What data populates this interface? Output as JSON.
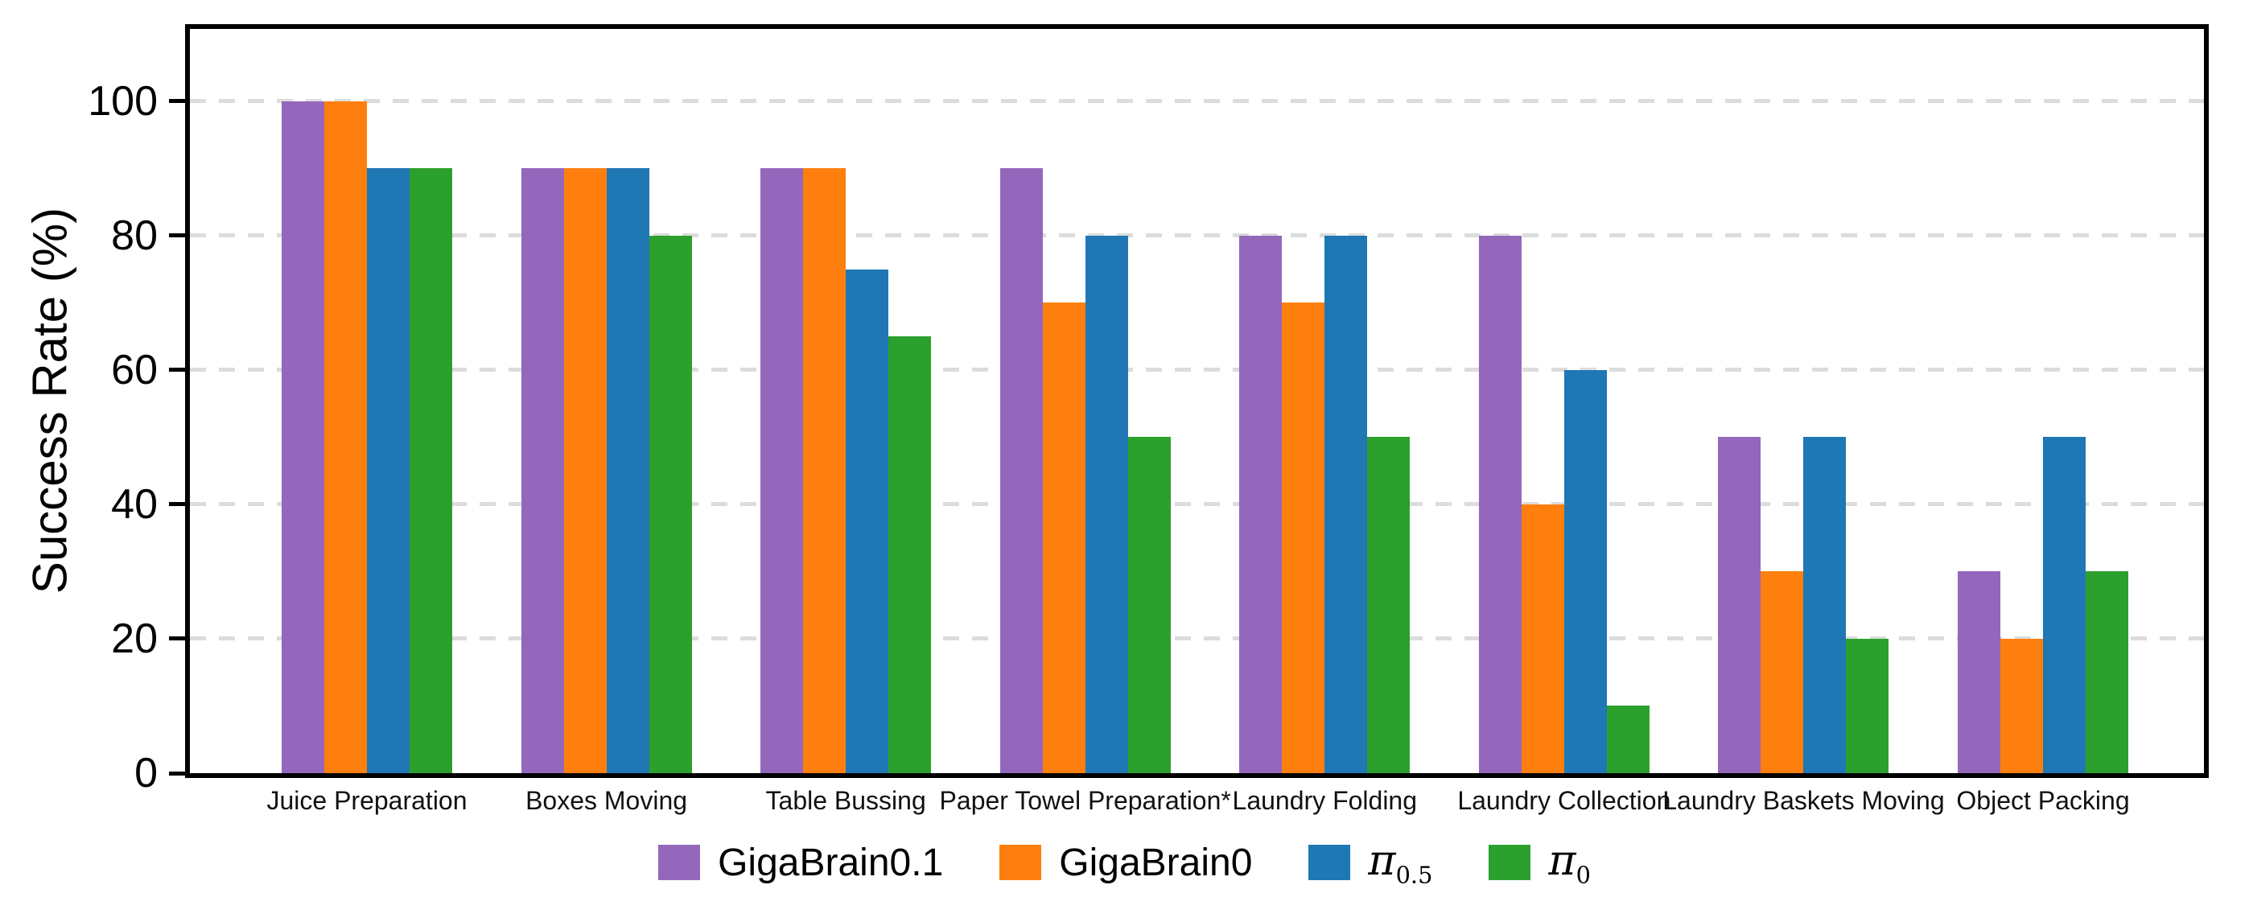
{
  "chart_data": {
    "type": "bar",
    "title": "",
    "xlabel": "",
    "ylabel": "Success Rate (%)",
    "ylim": [
      0,
      110.75
    ],
    "yticks": [
      0,
      20,
      40,
      60,
      80,
      100
    ],
    "grid": {
      "horizontal": true,
      "style": "dashed",
      "color": "#dcdcdc",
      "at": [
        20,
        40,
        60,
        80,
        100
      ]
    },
    "legend_position": "bottom-center",
    "background": "#ffffff",
    "axis_color": "#000000",
    "categories": [
      "Juice Preparation",
      "Boxes Moving",
      "Table Bussing",
      "Paper Towel Preparation*",
      "Laundry Folding",
      "Laundry Collection",
      "Laundry Baskets Moving",
      "Object Packing"
    ],
    "series": [
      {
        "name": "GigaBrain0.1",
        "legend_base": "GigaBrain0.1",
        "legend_sub": "",
        "color": "#9467bd",
        "values": [
          100,
          90,
          90,
          90,
          80,
          80,
          50,
          30
        ]
      },
      {
        "name": "GigaBrain0",
        "legend_base": "GigaBrain0",
        "legend_sub": "",
        "color": "#ff7f0e",
        "values": [
          100,
          90,
          90,
          70,
          70,
          40,
          30,
          20
        ]
      },
      {
        "name": "pi_0.5",
        "legend_base": "π",
        "legend_sub": "0.5",
        "color": "#1f77b4",
        "values": [
          90,
          90,
          75,
          80,
          80,
          60,
          50,
          50
        ]
      },
      {
        "name": "pi_0",
        "legend_base": "π",
        "legend_sub": "0",
        "color": "#2ca02c",
        "values": [
          90,
          80,
          65,
          50,
          50,
          10,
          20,
          30
        ]
      }
    ]
  }
}
